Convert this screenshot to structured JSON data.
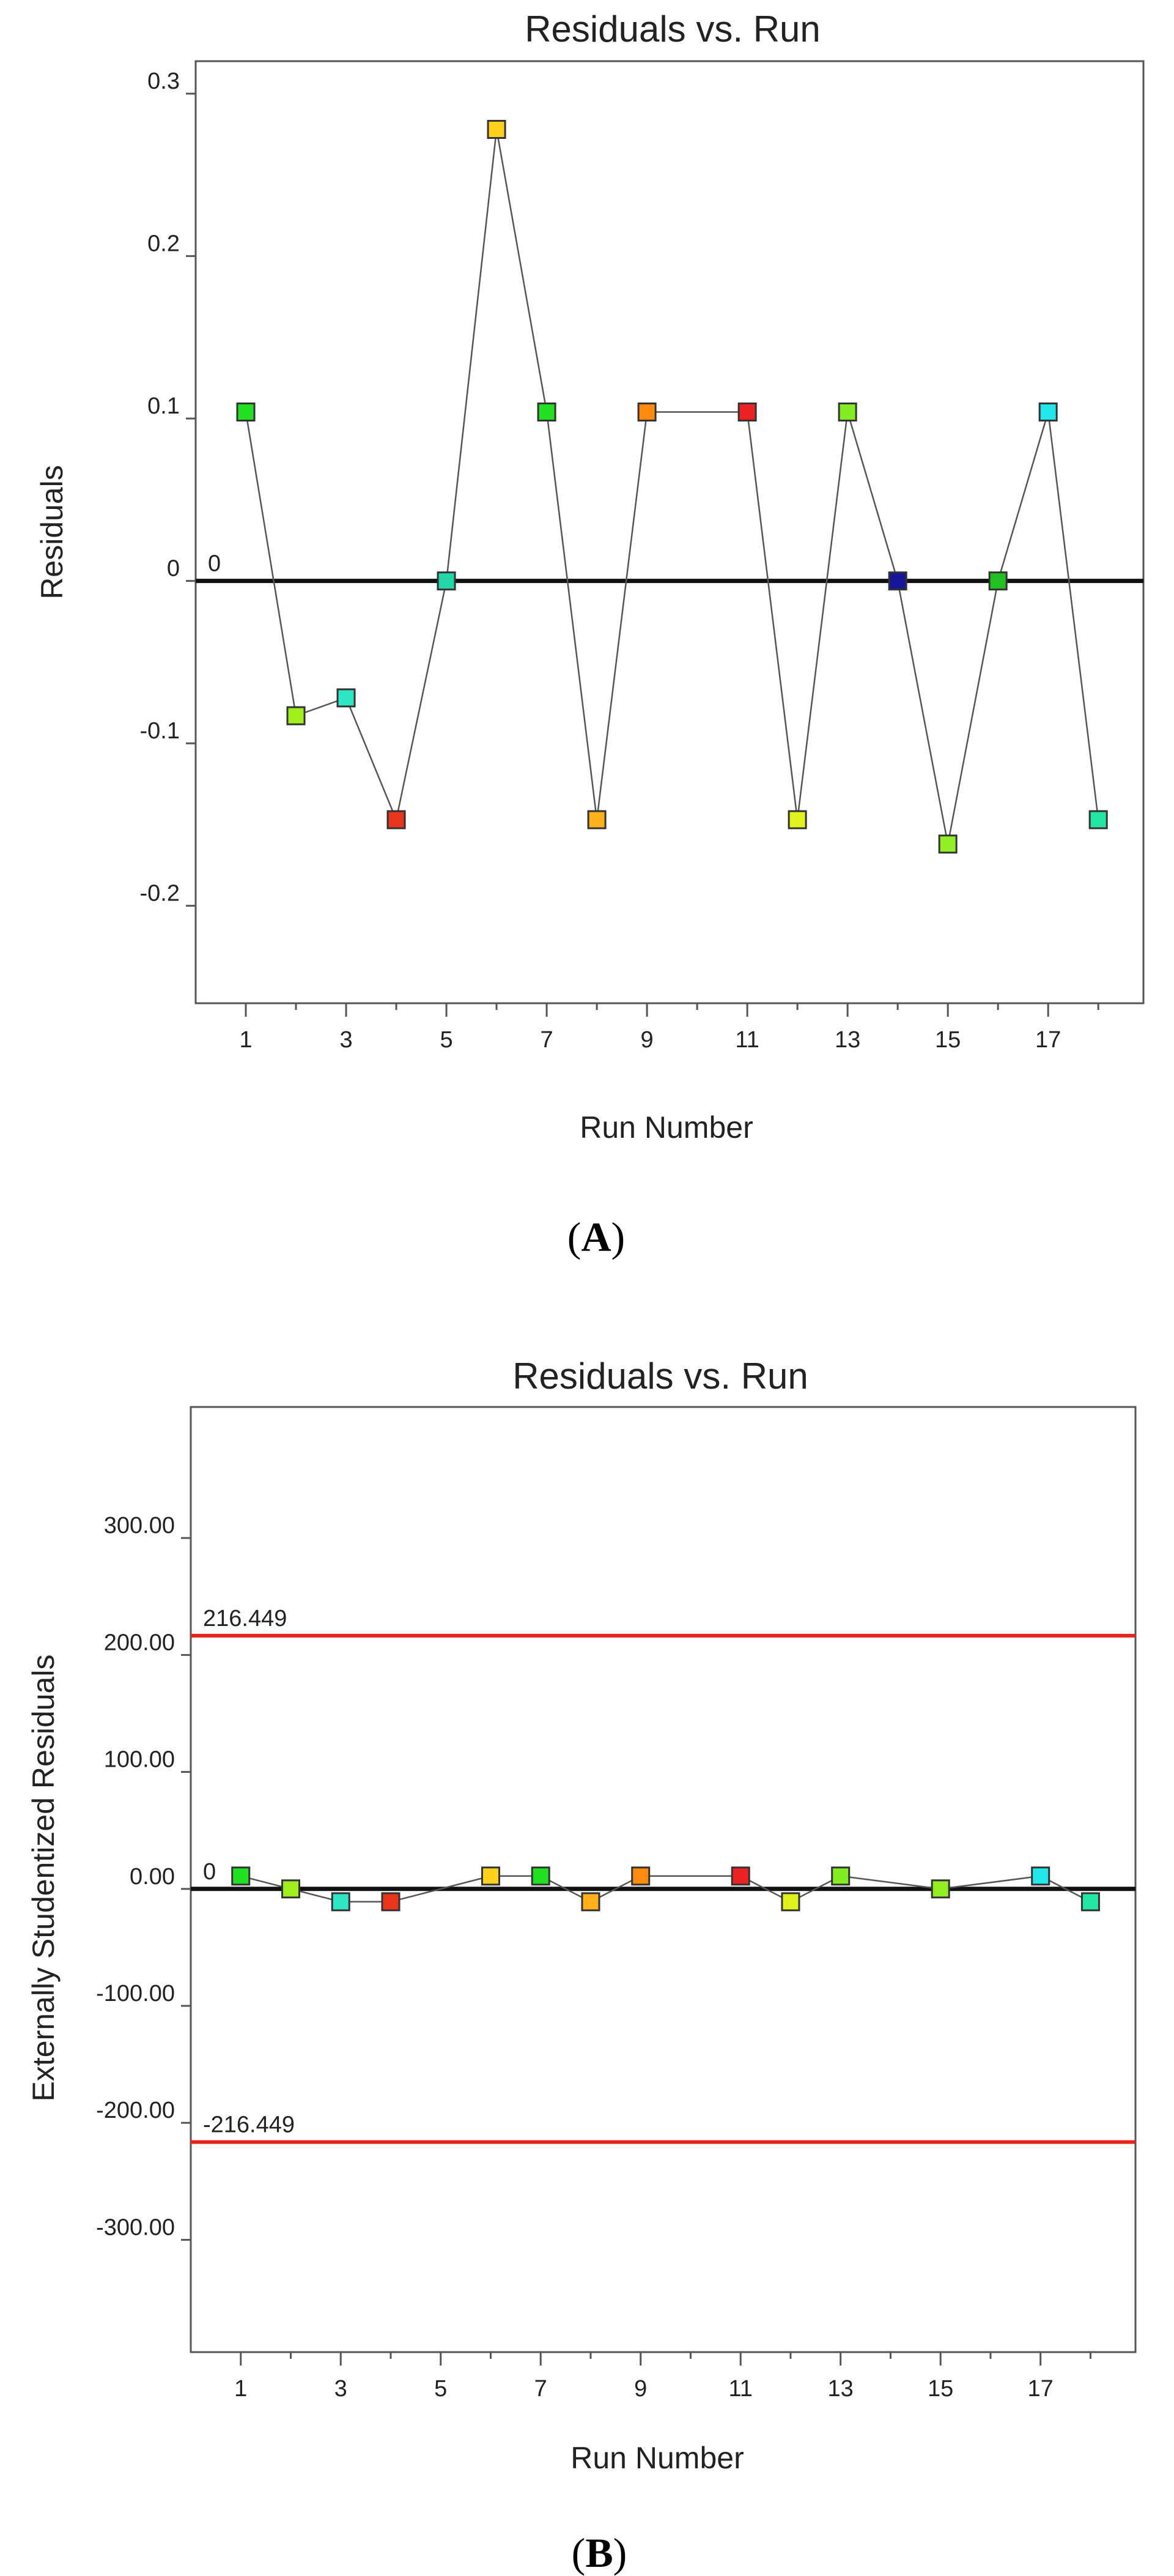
{
  "chart_data": [
    {
      "type": "scatter",
      "title": "Residuals vs. Run",
      "xlabel": "Run Number",
      "ylabel": "Residuals",
      "panel_label": "A",
      "xlim": [
        0,
        18.9
      ],
      "ylim": [
        -0.26,
        0.32
      ],
      "xticks": [
        1,
        3,
        5,
        7,
        9,
        11,
        13,
        15,
        17
      ],
      "minor_xticks": [
        2,
        4,
        6,
        8,
        10,
        12,
        14,
        16,
        18
      ],
      "yticks": [
        -0.2,
        -0.1,
        0,
        0.1,
        0.2,
        0.3
      ],
      "ytick_labels": [
        "-0.2",
        "-0.1",
        "0",
        "0.1",
        "0.2",
        "0.3"
      ],
      "reference_lines": [
        {
          "value": 0,
          "label": "0",
          "color": "#111111"
        }
      ],
      "x": [
        1,
        2,
        3,
        4,
        5,
        6,
        7,
        8,
        9,
        11,
        12,
        13,
        14,
        15,
        16,
        17,
        18
      ],
      "y": [
        0.104,
        -0.083,
        -0.072,
        -0.147,
        0.0,
        0.278,
        0.104,
        -0.147,
        0.104,
        0.104,
        -0.147,
        0.104,
        0.0,
        -0.162,
        0.0,
        0.104,
        -0.147
      ],
      "colors": [
        "#22e022",
        "#9fef1f",
        "#2ee6c4",
        "#e8351c",
        "#22d6a6",
        "#ffd11c",
        "#22e022",
        "#ffb01c",
        "#ff8a10",
        "#ee2222",
        "#dff21c",
        "#82ee22",
        "#16169a",
        "#92ee22",
        "#22c022",
        "#22e6ea",
        "#22e6a6"
      ]
    },
    {
      "type": "scatter",
      "title": "Residuals vs. Run",
      "xlabel": "Run Number",
      "ylabel": "Externally Studentized Residuals",
      "panel_label": "B",
      "xlim": [
        0,
        18.9
      ],
      "ylim": [
        -396,
        412
      ],
      "xticks": [
        1,
        3,
        5,
        7,
        9,
        11,
        13,
        15,
        17
      ],
      "minor_xticks": [
        2,
        4,
        6,
        8,
        10,
        12,
        14,
        16,
        18
      ],
      "yticks": [
        -300,
        -200,
        -100,
        0,
        100,
        200,
        300
      ],
      "ytick_labels": [
        "-300.00",
        "-200.00",
        "-100.00",
        "0.00",
        "100.00",
        "200.00",
        "300.00"
      ],
      "reference_lines": [
        {
          "value": 0,
          "label": "0",
          "color": "#111111"
        },
        {
          "value": 216.449,
          "label": "216.449",
          "color": "#e8231c"
        },
        {
          "value": -216.449,
          "label": "-216.449",
          "color": "#e8231c"
        }
      ],
      "x": [
        1,
        2,
        3,
        4,
        6,
        7,
        8,
        9,
        11,
        12,
        13,
        15,
        17,
        18
      ],
      "y": [
        11,
        0,
        -11,
        -11,
        11,
        11,
        -11,
        11,
        11,
        -11,
        11,
        0,
        11,
        -11
      ],
      "colors": [
        "#22e022",
        "#9fef1f",
        "#2ee6c4",
        "#e8351c",
        "#ffd11c",
        "#22e022",
        "#ffb01c",
        "#ff8a10",
        "#ee2222",
        "#dff21c",
        "#82ee22",
        "#92ee22",
        "#22e6ea",
        "#22e6a6"
      ]
    }
  ]
}
